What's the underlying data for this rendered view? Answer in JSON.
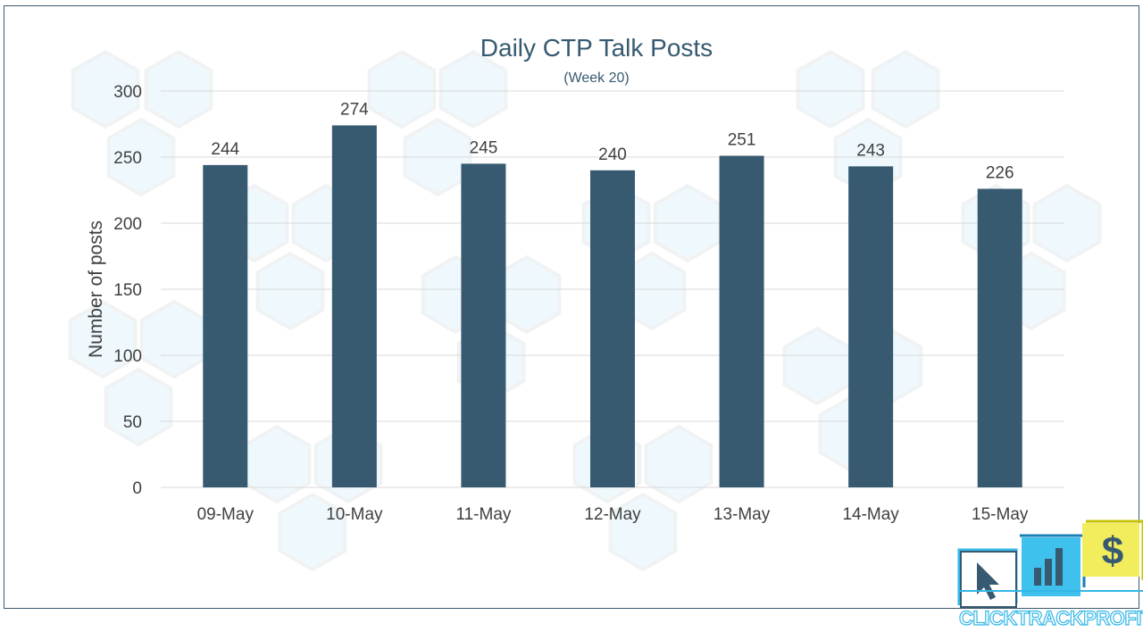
{
  "chart_data": {
    "type": "bar",
    "title": "Daily CTP Talk Posts",
    "subtitle": "(Week 20)",
    "xlabel": "",
    "ylabel": "Number of posts",
    "categories": [
      "09-May",
      "10-May",
      "11-May",
      "12-May",
      "13-May",
      "14-May",
      "15-May"
    ],
    "values": [
      244,
      274,
      245,
      240,
      251,
      243,
      226
    ],
    "ylim": [
      0,
      300
    ],
    "yticks": [
      0,
      50,
      100,
      150,
      200,
      250,
      300
    ],
    "grid": true,
    "legend": "none",
    "data_labels": true
  },
  "colors": {
    "bar": "#375a70",
    "title": "#375a70",
    "axis_text": "#404040",
    "grid": "#d9d9d9",
    "frame": "#3a5a70"
  },
  "logo": {
    "text": "CLICKTRACKPROFIT",
    "icons": [
      "cursor-icon",
      "bar-chart-icon",
      "dollar-icon"
    ]
  }
}
